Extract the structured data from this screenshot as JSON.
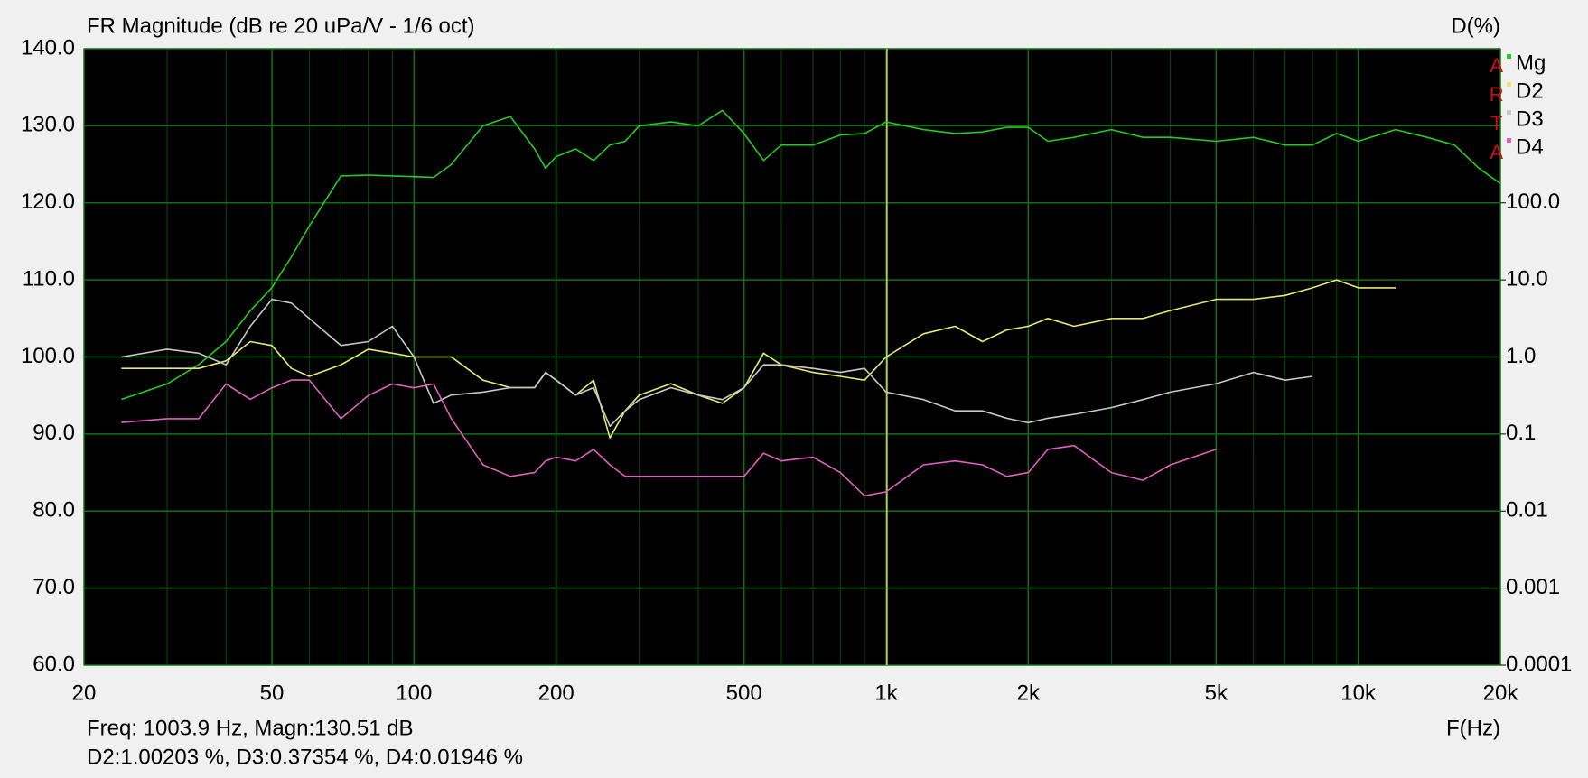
{
  "chart_data": {
    "type": "line",
    "title": "FR Magnitude (dB re 20 uPa/V - 1/6 oct)",
    "y2_title": "D(%)",
    "x_title": "F(Hz)",
    "watermark": "ARTA",
    "status": [
      "Freq: 1003.9 Hz, Magn:130.51 dB",
      "D2:1.00203 %, D3:0.37354 %, D4:0.01946 %"
    ],
    "cursor_x": 1003.9,
    "cursor_color": "#d8d860",
    "xscale": "log",
    "y2scale": "log",
    "grid": true,
    "legend": "right",
    "xlim": [
      20,
      20000
    ],
    "xticks": [
      20,
      50,
      100,
      200,
      500,
      {
        "value": 1000,
        "label": "1k"
      },
      {
        "value": 2000,
        "label": "2k"
      },
      {
        "value": 5000,
        "label": "5k"
      },
      {
        "value": 10000,
        "label": "10k"
      },
      {
        "value": 20000,
        "label": "20k"
      }
    ],
    "x_minor_ticks": [
      30,
      40,
      60,
      70,
      80,
      90,
      300,
      400,
      600,
      700,
      800,
      900,
      3000,
      4000,
      6000,
      7000,
      8000,
      9000
    ],
    "ylim": [
      60,
      140
    ],
    "yticks": [
      {
        "value": 60,
        "label": "60.0"
      },
      {
        "value": 70,
        "label": "70.0"
      },
      {
        "value": 80,
        "label": "80.0"
      },
      {
        "value": 90,
        "label": "90.0"
      },
      {
        "value": 100,
        "label": "100.0"
      },
      {
        "value": 110,
        "label": "110.0"
      },
      {
        "value": 120,
        "label": "120.0"
      },
      {
        "value": 130,
        "label": "130.0"
      },
      {
        "value": 140,
        "label": "140.0"
      }
    ],
    "y2lim": [
      0.0001,
      10000
    ],
    "y2ticks": [
      0.0001,
      0.001,
      0.01,
      0.1,
      {
        "value": 1,
        "label": "1.0"
      },
      {
        "value": 10,
        "label": "10.0"
      },
      {
        "value": 100,
        "label": "100.0"
      }
    ],
    "x": [
      24,
      30,
      35,
      40,
      45,
      50,
      55,
      60,
      70,
      80,
      90,
      100,
      110,
      120,
      140,
      160,
      180,
      190,
      200,
      220,
      240,
      260,
      280,
      300,
      350,
      400,
      450,
      500,
      550,
      600,
      700,
      800,
      900,
      1000,
      1200,
      1400,
      1600,
      1800,
      2000,
      2200,
      2500,
      3000,
      3500,
      4000,
      5000,
      6000,
      7000,
      8000,
      9000,
      10000,
      12000,
      14000,
      16000,
      18000,
      20000
    ],
    "series": [
      {
        "name": "Mg",
        "color": "#22cc22",
        "axis": "y",
        "values": [
          94.5,
          96.5,
          99,
          102,
          106,
          109,
          113,
          117,
          123.5,
          123.6,
          123.5,
          123.4,
          123.3,
          125,
          130,
          131.2,
          127,
          124.5,
          126,
          127,
          125.5,
          127.5,
          128,
          130,
          130.5,
          130,
          132,
          129,
          125.5,
          127.5,
          127.5,
          128.8,
          129,
          130.5,
          129.5,
          129,
          129.2,
          129.8,
          129.8,
          128,
          128.5,
          129.5,
          128.5,
          128.5,
          128,
          128.5,
          127.5,
          127.5,
          129,
          128,
          129.5,
          128.5,
          127.5,
          124.5,
          122.5
        ]
      },
      {
        "name": "D2",
        "color": "#e8e870",
        "axis": "y2",
        "values": [
          0.71,
          0.71,
          0.71,
          0.89,
          1.58,
          1.41,
          0.71,
          0.56,
          0.79,
          1.26,
          1.12,
          1.0,
          1.0,
          1.0,
          0.5,
          0.4,
          0.4,
          0.63,
          0.5,
          0.32,
          0.5,
          0.089,
          0.2,
          0.32,
          0.45,
          0.32,
          0.25,
          0.4,
          1.12,
          0.79,
          0.63,
          0.56,
          0.5,
          1.0,
          2.0,
          2.5,
          1.58,
          2.24,
          2.5,
          3.16,
          2.5,
          3.16,
          3.16,
          4.0,
          5.6,
          5.6,
          6.3,
          7.9,
          10,
          7.9,
          7.9,
          null,
          null,
          null,
          null
        ]
      },
      {
        "name": "D3",
        "color": "#c8c8c8",
        "axis": "y2",
        "values": [
          1.0,
          1.26,
          1.12,
          0.79,
          2.5,
          5.6,
          5.0,
          3.16,
          1.41,
          1.58,
          2.5,
          1.0,
          0.25,
          0.32,
          0.35,
          0.4,
          0.4,
          0.63,
          0.5,
          0.32,
          0.4,
          0.126,
          0.2,
          0.28,
          0.4,
          0.32,
          0.28,
          0.4,
          0.79,
          0.79,
          0.71,
          0.63,
          0.71,
          0.35,
          0.28,
          0.2,
          0.2,
          0.16,
          0.14,
          0.16,
          0.18,
          0.22,
          0.28,
          0.35,
          0.45,
          0.63,
          0.5,
          0.56,
          null,
          null,
          null,
          null,
          null,
          null,
          null
        ]
      },
      {
        "name": "D4",
        "color": "#e060c0",
        "axis": "y2",
        "values": [
          0.141,
          0.158,
          0.158,
          0.447,
          0.282,
          0.398,
          0.501,
          0.501,
          0.158,
          0.316,
          0.447,
          0.398,
          0.447,
          0.158,
          0.0398,
          0.0282,
          0.0316,
          0.0447,
          0.0501,
          0.0447,
          0.0631,
          0.0398,
          0.0282,
          0.0282,
          0.0282,
          0.0282,
          0.0282,
          0.0282,
          0.0562,
          0.0447,
          0.0501,
          0.0316,
          0.0158,
          0.0178,
          0.0398,
          0.0447,
          0.0398,
          0.0282,
          0.0316,
          0.0631,
          0.0708,
          0.0316,
          0.0251,
          0.0398,
          0.0631,
          null,
          null,
          null,
          null,
          null,
          null,
          null,
          null,
          null,
          null
        ]
      }
    ]
  }
}
